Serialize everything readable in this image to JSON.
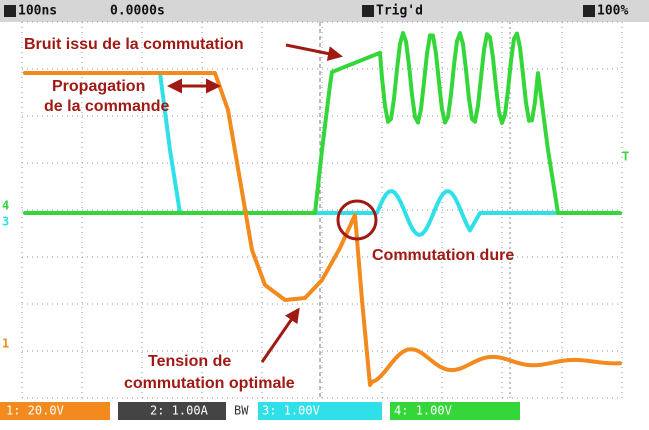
{
  "header": {
    "timebase": "100ns",
    "time": "0.0000s",
    "trigger": "Trig'd",
    "zoom": "100%"
  },
  "markers": {
    "ch4": "4",
    "ch3": "3",
    "ch1": "1",
    "trigger": "T"
  },
  "annotations": {
    "noise": "Bruit issu de la commutation",
    "propagation": [
      "Propagation",
      "de la commande"
    ],
    "hard_switching": "Commutation dure",
    "optimal_voltage": [
      "Tension de",
      "commutation optimale"
    ]
  },
  "footer": {
    "ch1": "1: 20.0V",
    "ch2": "2: 1.00A",
    "bw": "BW",
    "ch3": "3: 1.00V",
    "ch4": "4: 1.00V"
  }
}
